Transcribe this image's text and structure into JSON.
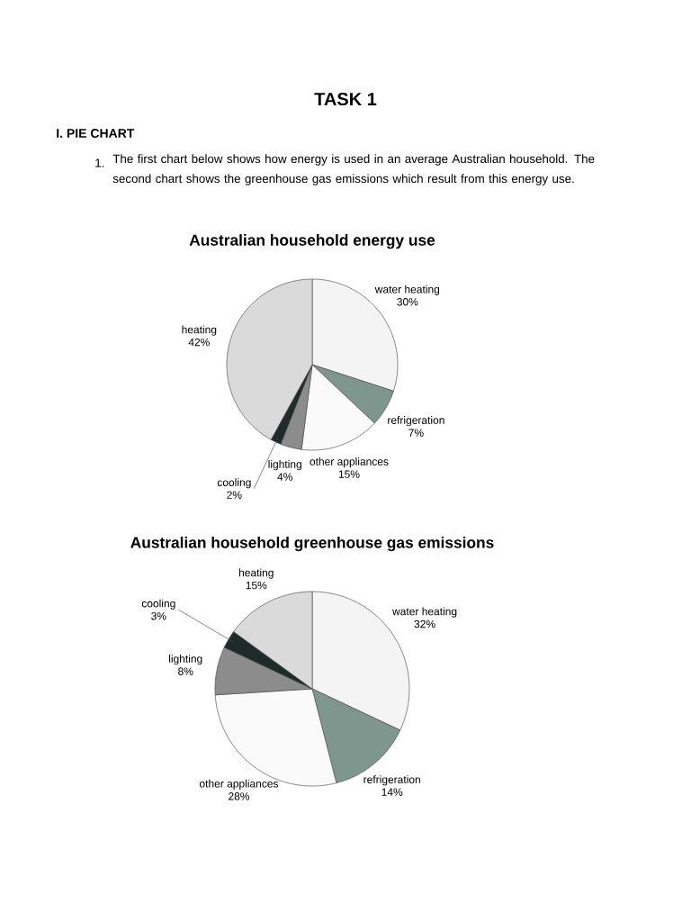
{
  "chart_data": [
    {
      "type": "pie",
      "title": "Australian household energy use",
      "annotations": [
        "TASK 1",
        "I. PIE CHART",
        "1.",
        "The first chart below shows how energy is used in an average Australian household. The second chart shows the greenhouse gas emissions which result from this energy use."
      ],
      "categories": [
        "water heating",
        "refrigeration",
        "other appliances",
        "lighting",
        "cooling",
        "heating"
      ],
      "values": [
        30,
        7,
        15,
        4,
        2,
        42
      ],
      "value_labels": [
        "30%",
        "7%",
        "15%",
        "4%",
        "2%",
        "42%"
      ],
      "colors": [
        "#f4f4f4",
        "#7f968f",
        "#fafafa",
        "#8c8c8c",
        "#1f2b29",
        "#dadada"
      ]
    },
    {
      "type": "pie",
      "title": "Australian household greenhouse gas emissions",
      "categories": [
        "water heating",
        "refrigeration",
        "other appliances",
        "lighting",
        "cooling",
        "heating"
      ],
      "values": [
        32,
        14,
        28,
        8,
        3,
        15
      ],
      "value_labels": [
        "32%",
        "14%",
        "28%",
        "8%",
        "3%",
        "15%"
      ],
      "colors": [
        "#f4f4f4",
        "#7f968f",
        "#fafafa",
        "#8c8c8c",
        "#1f2b29",
        "#dadada"
      ]
    }
  ]
}
